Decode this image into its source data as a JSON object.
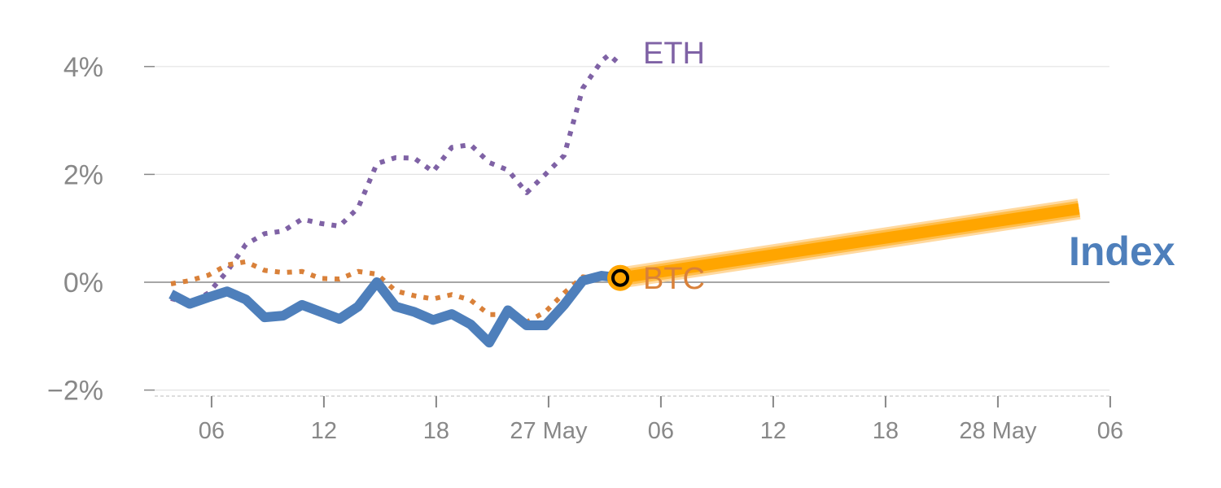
{
  "chart_data": {
    "type": "line",
    "title": "",
    "xlabel": "",
    "ylabel": "",
    "ylim": [
      -2,
      4.3
    ],
    "xlim": [
      -3.5,
      50.5
    ],
    "x_unit": "days",
    "grid": true,
    "y_ticks": [
      {
        "value": 4,
        "label": "4%"
      },
      {
        "value": 2,
        "label": "2%"
      },
      {
        "value": 0,
        "label": "0%"
      },
      {
        "value": -2,
        "label": "−2%"
      }
    ],
    "x_ticks": [
      {
        "value": 2.17,
        "label": "06"
      },
      {
        "value": 8.17,
        "label": "12"
      },
      {
        "value": 14.17,
        "label": "18"
      },
      {
        "value": 20.17,
        "label": "27 May"
      },
      {
        "value": 26.17,
        "label": "06"
      },
      {
        "value": 32.17,
        "label": "12"
      },
      {
        "value": 38.17,
        "label": "18"
      },
      {
        "value": 44.17,
        "label": "28 May"
      },
      {
        "value": 50.17,
        "label": "06"
      }
    ],
    "series": [
      {
        "name": "ETH",
        "label": "ETH",
        "color": "#7f62a5",
        "style": "dotted",
        "x": [
          0,
          1,
          2,
          3,
          4,
          5,
          6,
          7,
          8,
          9,
          10,
          11,
          12,
          13,
          14,
          15,
          16,
          17,
          18,
          19,
          20,
          21,
          22,
          23,
          23.4,
          24
        ],
        "values": [
          -0.3,
          -0.4,
          -0.2,
          0.2,
          0.7,
          0.9,
          0.95,
          1.17,
          1.09,
          1.04,
          1.38,
          2.2,
          2.31,
          2.3,
          2.05,
          2.5,
          2.55,
          2.22,
          2.08,
          1.66,
          2.0,
          2.35,
          3.6,
          4.1,
          4.22,
          4.03
        ]
      },
      {
        "name": "BTC",
        "label": "BTC",
        "color": "#d9813a",
        "style": "dotted",
        "x": [
          0,
          1,
          2,
          3,
          4,
          5,
          6,
          7,
          8,
          9,
          10,
          11,
          12,
          13,
          14,
          15,
          16,
          17,
          18,
          19,
          20,
          21,
          22,
          23
        ],
        "values": [
          -0.03,
          0.03,
          0.13,
          0.32,
          0.38,
          0.22,
          0.18,
          0.2,
          0.07,
          0.06,
          0.2,
          0.15,
          -0.16,
          -0.25,
          -0.31,
          -0.23,
          -0.33,
          -0.6,
          -0.6,
          -0.74,
          -0.55,
          -0.2,
          0.1,
          0.05
        ]
      },
      {
        "name": "Index",
        "label": "Index",
        "color": "#4e7fbb",
        "style": "solid",
        "x": [
          0,
          1,
          2,
          3,
          4,
          5,
          6,
          7,
          8,
          9,
          10,
          11,
          12,
          13,
          14,
          15,
          16,
          17,
          18,
          19,
          20,
          21,
          22,
          23,
          24
        ],
        "values": [
          -0.22,
          -0.4,
          -0.28,
          -0.17,
          -0.32,
          -0.65,
          -0.62,
          -0.42,
          -0.55,
          -0.68,
          -0.45,
          0.0,
          -0.45,
          -0.55,
          -0.7,
          -0.59,
          -0.78,
          -1.12,
          -0.52,
          -0.8,
          -0.8,
          -0.42,
          0.03,
          0.12,
          0.08
        ]
      },
      {
        "name": "Index forecast",
        "color": "#ffa500",
        "style": "thick",
        "x": [
          24,
          48.5
        ],
        "values": [
          0.08,
          1.36
        ]
      }
    ],
    "marker": {
      "x": 24,
      "value": 0.08,
      "color": "#ffa500"
    }
  }
}
